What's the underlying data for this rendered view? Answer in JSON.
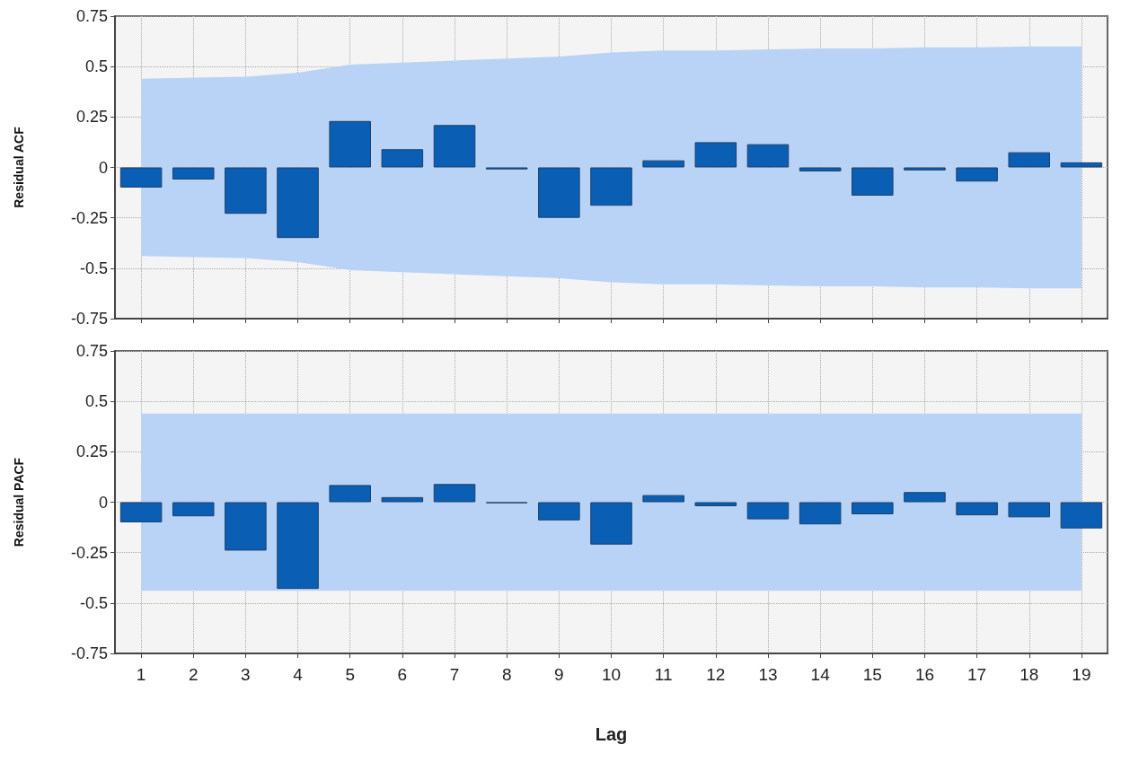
{
  "chart_data": [
    {
      "type": "bar",
      "ylabel": "Residual ACF",
      "x": [
        1,
        2,
        3,
        4,
        5,
        6,
        7,
        8,
        9,
        10,
        11,
        12,
        13,
        14,
        15,
        16,
        17,
        18,
        19
      ],
      "xlim": [
        0.5,
        19.5
      ],
      "xticks": [
        1,
        2,
        3,
        4,
        5,
        6,
        7,
        8,
        9,
        10,
        11,
        12,
        13,
        14,
        15,
        16,
        17,
        18,
        19
      ],
      "ylim": [
        -0.75,
        0.75
      ],
      "yticks": [
        -0.75,
        -0.5,
        -0.25,
        0,
        0.25,
        0.5,
        0.75
      ],
      "grid": true,
      "tick_labels": "y",
      "series": [
        {
          "type": "area",
          "color": "#b9d3f7",
          "values": [
            0.44,
            0.445,
            0.45,
            0.47,
            0.51,
            0.52,
            0.53,
            0.54,
            0.55,
            0.57,
            0.58,
            0.58,
            0.585,
            0.59,
            0.59,
            0.595,
            0.595,
            0.6,
            0.6
          ]
        },
        {
          "type": "area",
          "color": "#b9d3f7",
          "values": [
            -0.44,
            -0.445,
            -0.45,
            -0.47,
            -0.51,
            -0.52,
            -0.53,
            -0.54,
            -0.55,
            -0.57,
            -0.58,
            -0.58,
            -0.585,
            -0.59,
            -0.59,
            -0.595,
            -0.595,
            -0.6,
            -0.6
          ]
        },
        {
          "color": "#0a5fb4",
          "values": [
            -0.1,
            -0.06,
            -0.23,
            -0.35,
            0.23,
            0.09,
            0.21,
            -0.01,
            -0.25,
            -0.19,
            0.035,
            0.125,
            0.115,
            -0.02,
            -0.14,
            -0.015,
            -0.07,
            0.075,
            0.025
          ]
        }
      ]
    },
    {
      "type": "bar",
      "ylabel": "Residual PACF",
      "xlabel": "Lag",
      "x": [
        1,
        2,
        3,
        4,
        5,
        6,
        7,
        8,
        9,
        10,
        11,
        12,
        13,
        14,
        15,
        16,
        17,
        18,
        19
      ],
      "xlim": [
        0.5,
        19.5
      ],
      "xticks": [
        1,
        2,
        3,
        4,
        5,
        6,
        7,
        8,
        9,
        10,
        11,
        12,
        13,
        14,
        15,
        16,
        17,
        18,
        19
      ],
      "ylim": [
        -0.75,
        0.75
      ],
      "yticks": [
        -0.75,
        -0.5,
        -0.25,
        0,
        0.25,
        0.5,
        0.75
      ],
      "grid": true,
      "series": [
        {
          "type": "area",
          "color": "#b9d3f7",
          "values": [
            0.44,
            0.44,
            0.44,
            0.44,
            0.44,
            0.44,
            0.44,
            0.44,
            0.44,
            0.44,
            0.44,
            0.44,
            0.44,
            0.44,
            0.44,
            0.44,
            0.44,
            0.44,
            0.44
          ]
        },
        {
          "type": "area",
          "color": "#b9d3f7",
          "values": [
            -0.44,
            -0.44,
            -0.44,
            -0.44,
            -0.44,
            -0.44,
            -0.44,
            -0.44,
            -0.44,
            -0.44,
            -0.44,
            -0.44,
            -0.44,
            -0.44,
            -0.44,
            -0.44,
            -0.44,
            -0.44,
            -0.44
          ]
        },
        {
          "color": "#0a5fb4",
          "values": [
            -0.1,
            -0.07,
            -0.24,
            -0.43,
            0.085,
            0.025,
            0.09,
            -0.005,
            -0.09,
            -0.21,
            0.035,
            -0.02,
            -0.085,
            -0.11,
            -0.06,
            0.05,
            -0.065,
            -0.075,
            -0.13
          ]
        }
      ]
    }
  ]
}
